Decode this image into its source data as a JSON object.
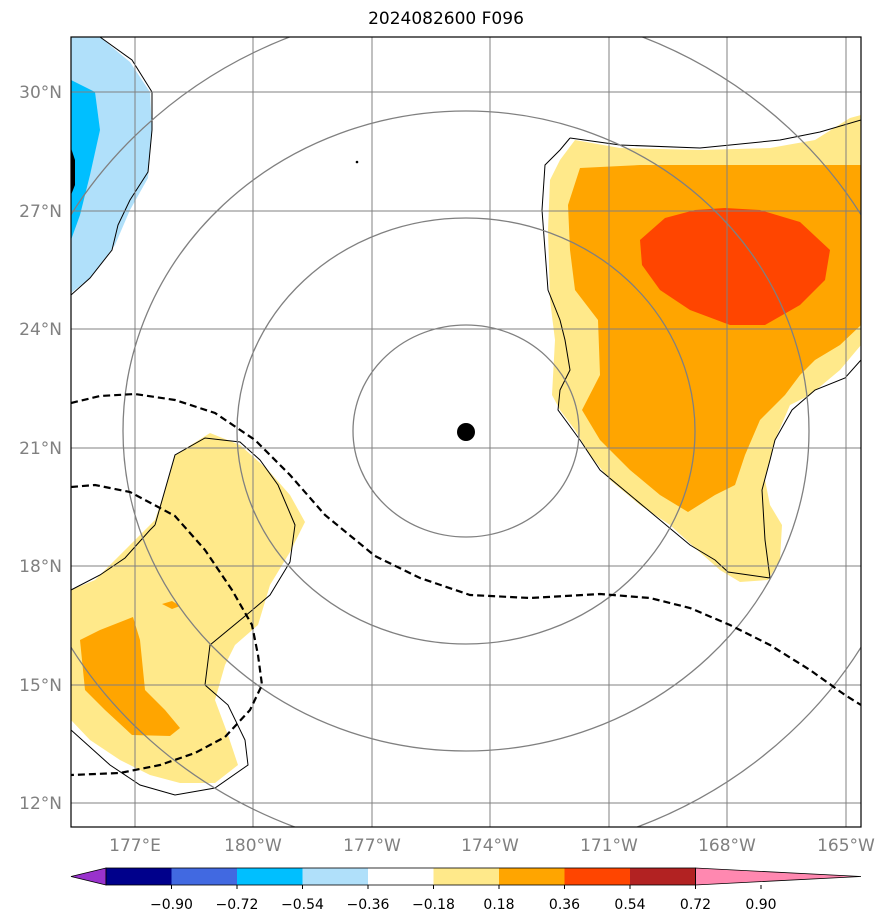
{
  "title": "2024082600 F096",
  "lat_ticks": [
    "30°N",
    "27°N",
    "24°N",
    "21°N",
    "18°N",
    "15°N",
    "12°N"
  ],
  "lon_ticks": [
    "177°E",
    "180°W",
    "177°W",
    "174°W",
    "171°W",
    "168°W",
    "165°W"
  ],
  "colorbar": {
    "ticks": [
      "−0.90",
      "−0.72",
      "−0.54",
      "−0.36",
      "−0.18",
      "0.18",
      "0.36",
      "0.54",
      "0.72",
      "0.90"
    ],
    "colors": [
      "#9932cc",
      "#00008b",
      "#4169e1",
      "#00bfff",
      "#b0e0fa",
      "#ffffff",
      "#ffe98a",
      "#ffa500",
      "#ff4500",
      "#b22222",
      "#ff88b0"
    ]
  },
  "center_marker": {
    "lat": 21.4,
    "lon": -174.6
  },
  "colors": {
    "grid": "#808080",
    "range_rings": "#808080",
    "coastline_contour": "#000000",
    "dashed_contour": "#000000"
  }
}
